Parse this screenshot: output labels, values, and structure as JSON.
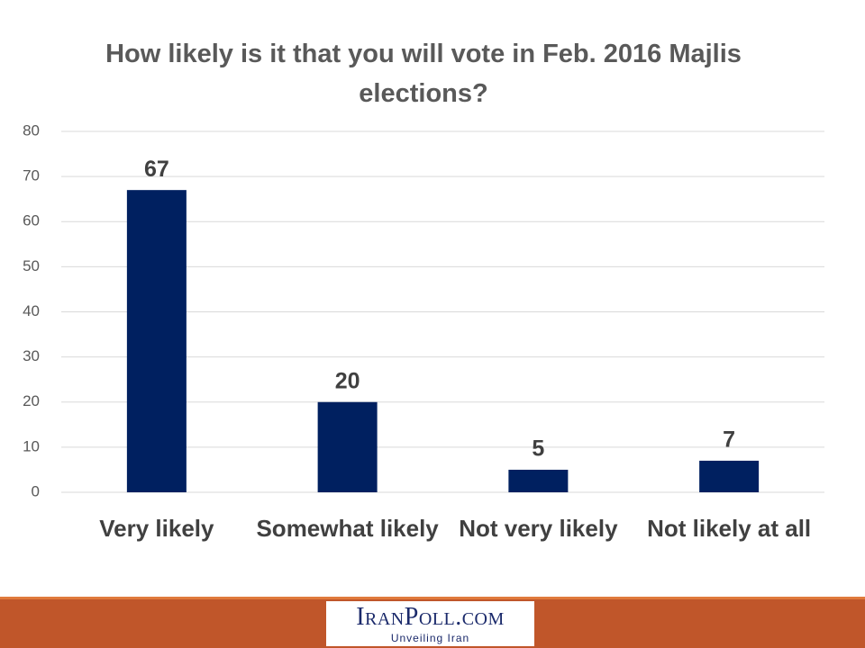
{
  "chart_data": {
    "type": "bar",
    "title": "How likely is it that you will vote in Feb. 2016 Majlis elections?",
    "categories": [
      "Very likely",
      "Somewhat likely",
      "Not very likely",
      "Not likely at all"
    ],
    "values": [
      67,
      20,
      5,
      7
    ],
    "color": "#002060",
    "ylim": [
      0,
      80
    ],
    "yticks": [
      0,
      10,
      20,
      30,
      40,
      50,
      60,
      70,
      80
    ],
    "grid": true
  },
  "footer": {
    "logo": "IranPoll.com",
    "tagline": "Unveiling Iran"
  }
}
